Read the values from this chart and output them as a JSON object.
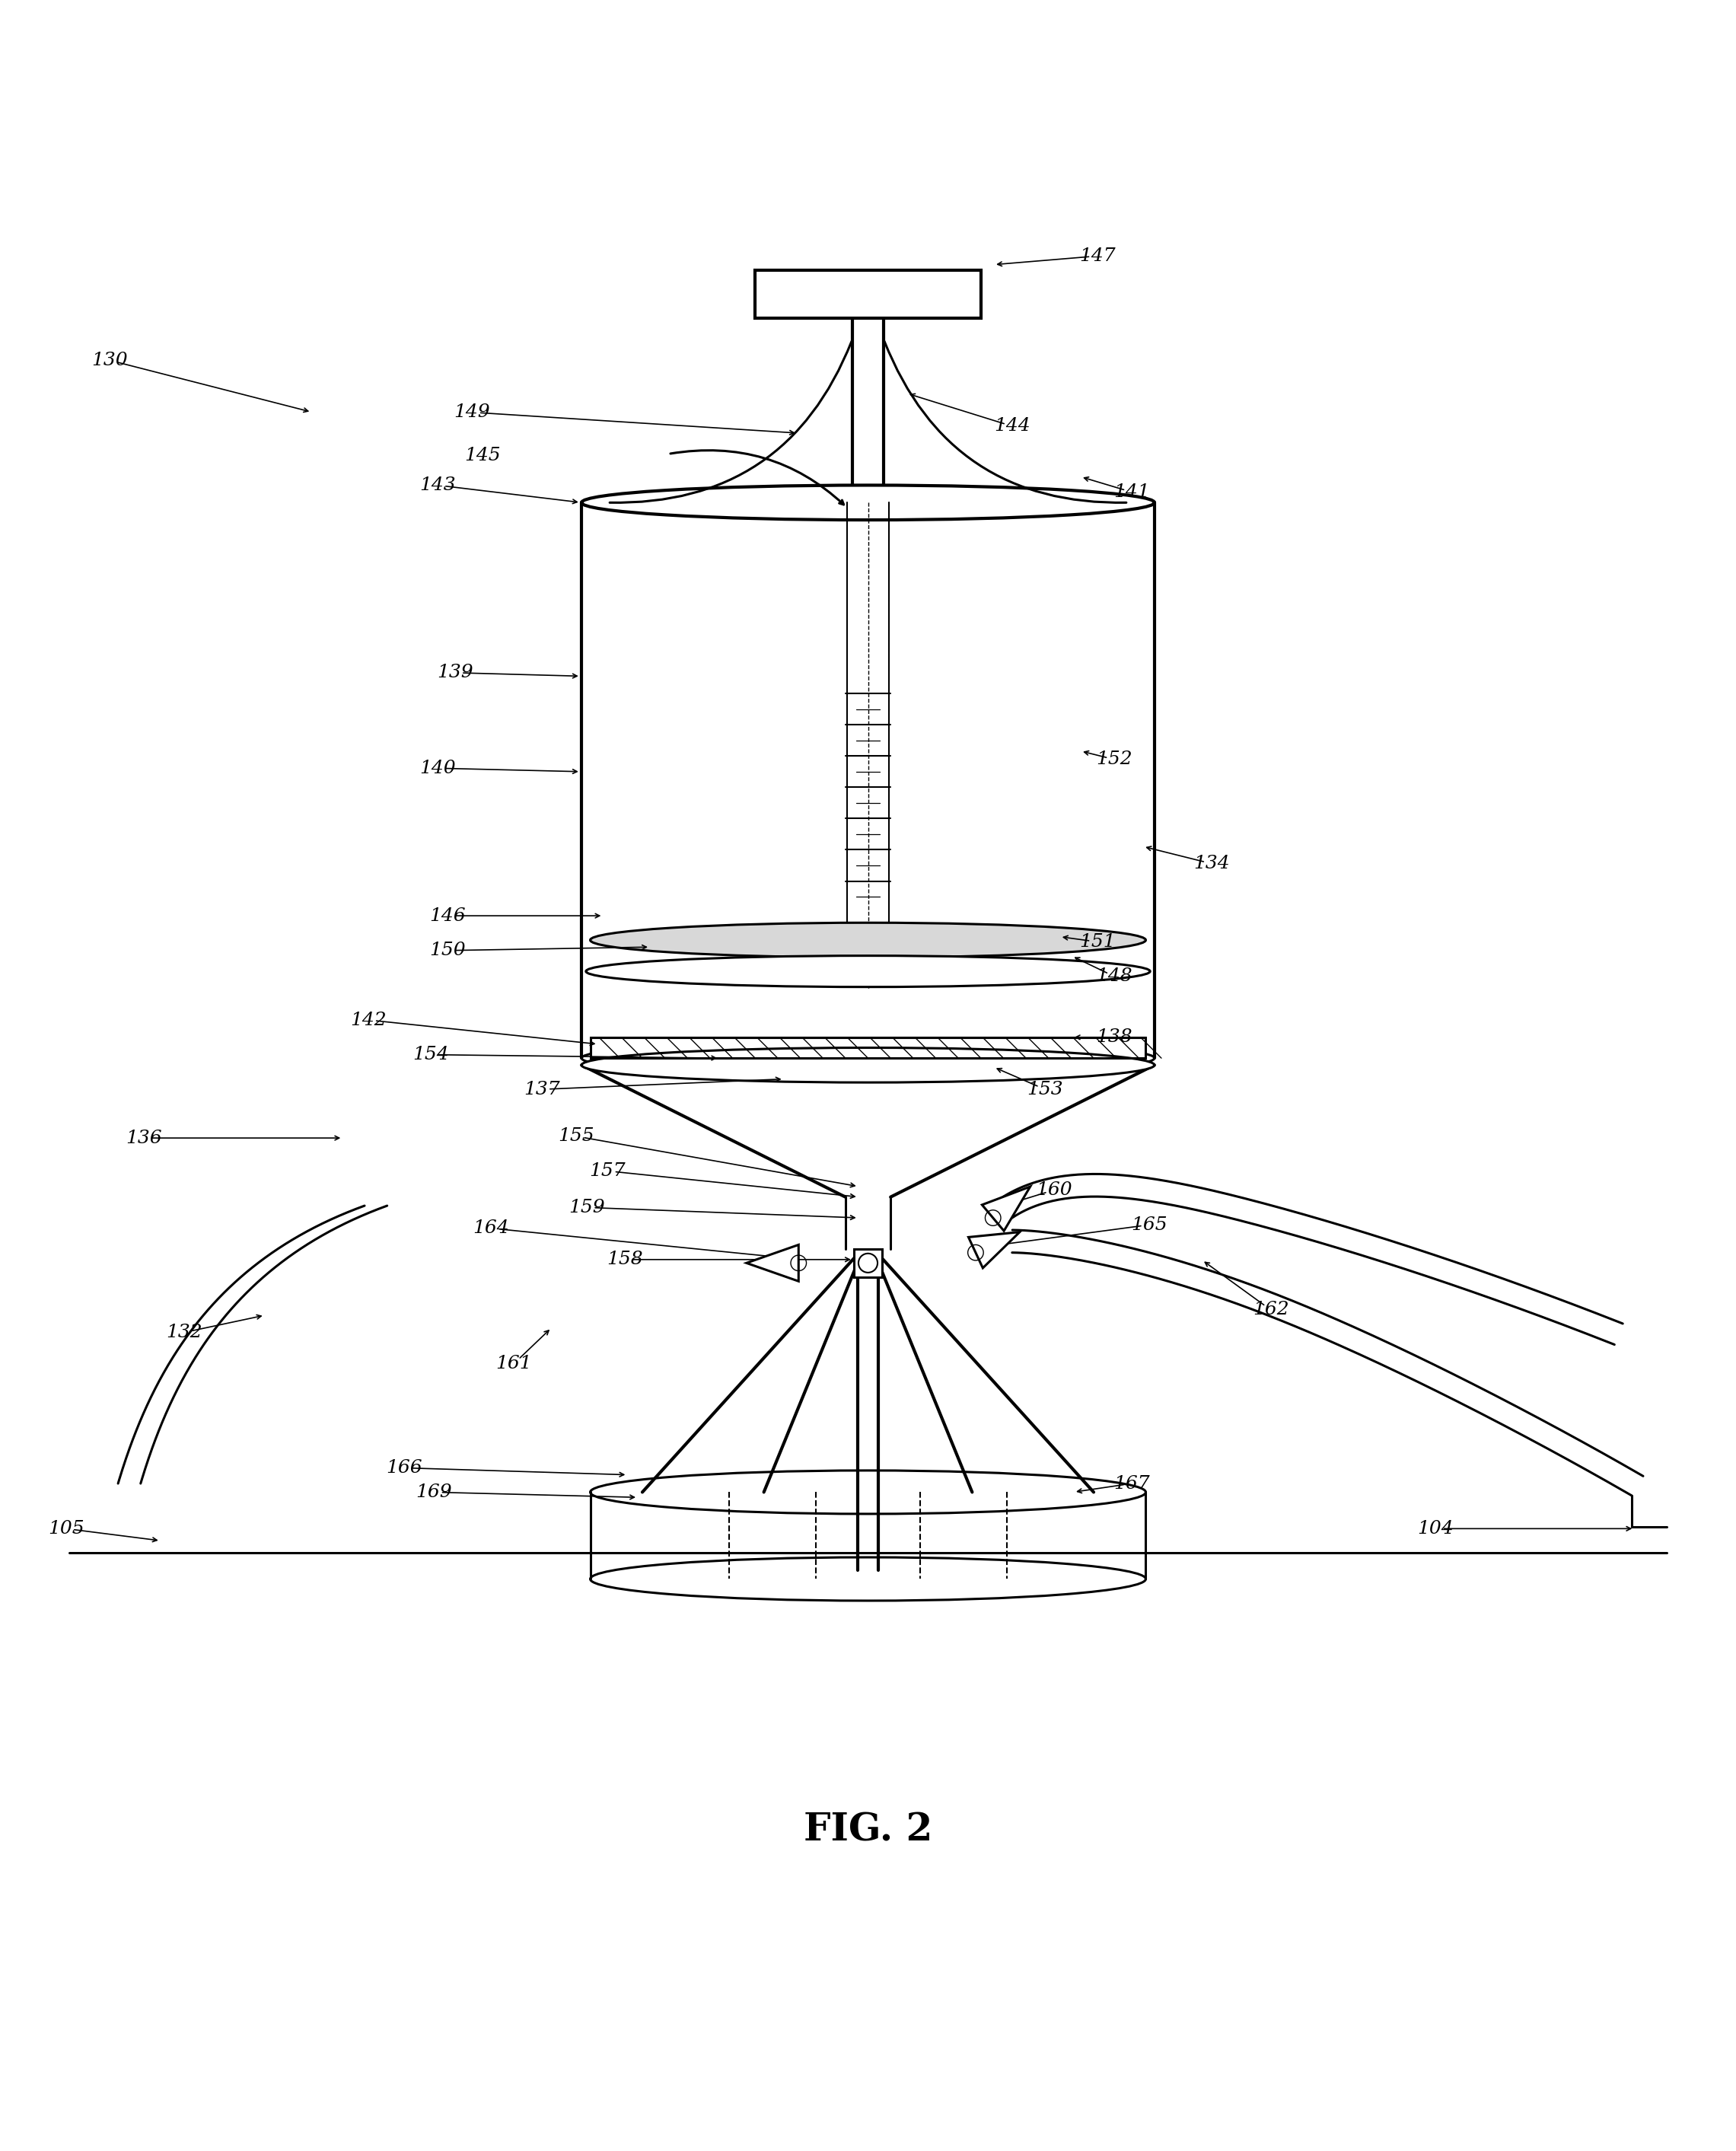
{
  "title": "FIG. 2",
  "title_fontsize": 36,
  "bg_color": "#ffffff",
  "line_color": "#000000",
  "fig_width": 22.81,
  "fig_height": 28.26
}
